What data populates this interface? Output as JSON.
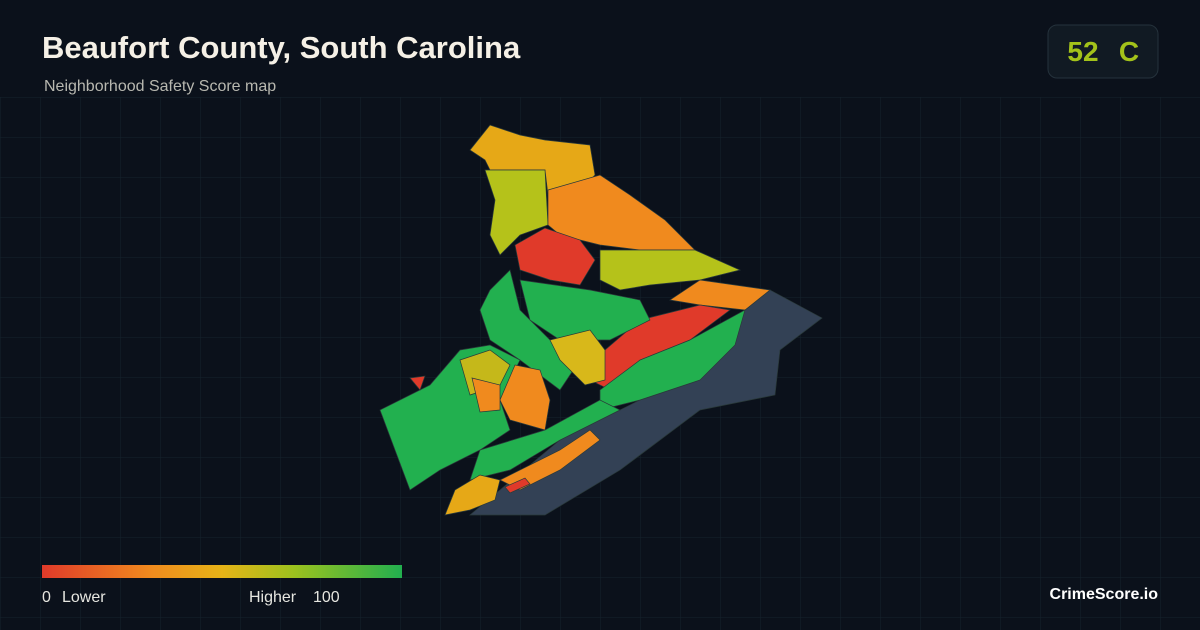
{
  "header": {
    "title": "Beaufort County, South Carolina",
    "subtitle": "Neighborhood Safety Score map"
  },
  "score": {
    "value": 52,
    "grade": "C"
  },
  "legend": {
    "min": 0,
    "min_label": "Lower",
    "max_label": "Higher",
    "max": 100
  },
  "brand": "CrimeScore.io"
}
